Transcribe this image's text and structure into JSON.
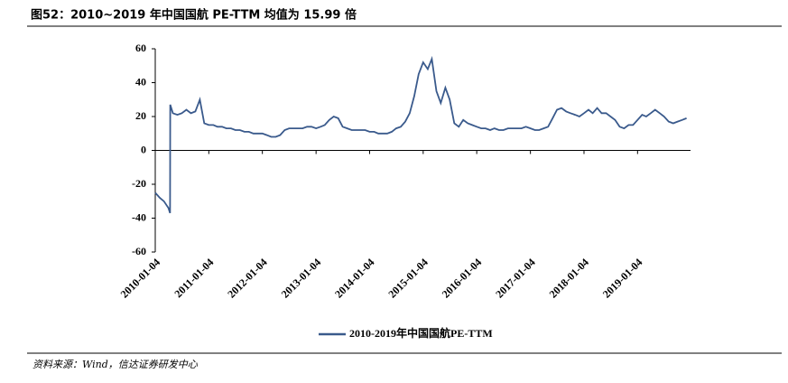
{
  "chart_data": {
    "type": "line",
    "title": "图52：2010~2019 年中国国航 PE-TTM 均值为 15.99 倍",
    "source": "资料来源：Wind，信达证券研发中心",
    "xlim": [
      "2010-01-04",
      "2019-12-31"
    ],
    "xticks": [
      "2010-01-04",
      "2011-01-04",
      "2012-01-04",
      "2013-01-04",
      "2014-01-04",
      "2015-01-04",
      "2016-01-04",
      "2017-01-04",
      "2018-01-04",
      "2019-01-04"
    ],
    "ylim": [
      -60,
      60
    ],
    "yticks": [
      -60,
      -40,
      -20,
      0,
      20,
      40,
      60
    ],
    "series": [
      {
        "name": "2010-2019年中国国航PE-TTM",
        "color": "#3a5a8c",
        "x": [
          "2010-01-04",
          "2010-02-04",
          "2010-03-04",
          "2010-04-04",
          "2010-04-15",
          "2010-04-16",
          "2010-05-04",
          "2010-06-04",
          "2010-07-04",
          "2010-08-04",
          "2010-09-04",
          "2010-10-04",
          "2010-11-04",
          "2010-12-04",
          "2011-01-04",
          "2011-02-04",
          "2011-03-04",
          "2011-04-04",
          "2011-05-04",
          "2011-06-04",
          "2011-07-04",
          "2011-08-04",
          "2011-09-04",
          "2011-10-04",
          "2011-11-04",
          "2011-12-04",
          "2012-01-04",
          "2012-02-04",
          "2012-03-04",
          "2012-04-04",
          "2012-05-04",
          "2012-06-04",
          "2012-07-04",
          "2012-08-04",
          "2012-09-04",
          "2012-10-04",
          "2012-11-04",
          "2012-12-04",
          "2013-01-04",
          "2013-02-04",
          "2013-03-04",
          "2013-04-04",
          "2013-05-04",
          "2013-06-04",
          "2013-07-04",
          "2013-08-04",
          "2013-09-04",
          "2013-10-04",
          "2013-11-04",
          "2013-12-04",
          "2014-01-04",
          "2014-02-04",
          "2014-03-04",
          "2014-04-04",
          "2014-05-04",
          "2014-06-04",
          "2014-07-04",
          "2014-08-04",
          "2014-09-04",
          "2014-10-04",
          "2014-11-04",
          "2014-12-04",
          "2015-01-04",
          "2015-02-04",
          "2015-03-04",
          "2015-04-04",
          "2015-05-04",
          "2015-06-04",
          "2015-07-04",
          "2015-08-04",
          "2015-09-04",
          "2015-10-04",
          "2015-11-04",
          "2015-12-04",
          "2016-01-04",
          "2016-02-04",
          "2016-03-04",
          "2016-04-04",
          "2016-05-04",
          "2016-06-04",
          "2016-07-04",
          "2016-08-04",
          "2016-09-04",
          "2016-10-04",
          "2016-11-04",
          "2016-12-04",
          "2017-01-04",
          "2017-02-04",
          "2017-03-04",
          "2017-04-04",
          "2017-05-04",
          "2017-06-04",
          "2017-07-04",
          "2017-08-04",
          "2017-09-04",
          "2017-10-04",
          "2017-11-04",
          "2017-12-04",
          "2018-01-04",
          "2018-02-04",
          "2018-03-04",
          "2018-04-04",
          "2018-05-04",
          "2018-06-04",
          "2018-07-04",
          "2018-08-04",
          "2018-09-04",
          "2018-10-04",
          "2018-11-04",
          "2018-12-04",
          "2019-01-04",
          "2019-02-04",
          "2019-03-04",
          "2019-04-04",
          "2019-05-04",
          "2019-06-04",
          "2019-07-04",
          "2019-08-04",
          "2019-09-04",
          "2019-10-04",
          "2019-11-04",
          "2019-12-04"
        ],
        "values": [
          -25,
          -28,
          -30,
          -34,
          -37,
          27,
          22,
          21,
          22,
          24,
          22,
          23,
          30,
          16,
          15,
          15,
          14,
          14,
          13,
          13,
          12,
          12,
          11,
          11,
          10,
          10,
          10,
          9,
          8,
          8,
          9,
          12,
          13,
          13,
          13,
          13,
          14,
          14,
          13,
          14,
          15,
          18,
          20,
          19,
          14,
          13,
          12,
          12,
          12,
          12,
          11,
          11,
          10,
          10,
          10,
          11,
          13,
          14,
          17,
          22,
          32,
          45,
          52,
          48,
          54,
          35,
          28,
          37,
          30,
          16,
          14,
          18,
          16,
          15,
          14,
          13,
          13,
          12,
          13,
          12,
          12,
          13,
          13,
          13,
          13,
          14,
          13,
          12,
          12,
          13,
          14,
          19,
          24,
          25,
          23,
          22,
          21,
          20,
          22,
          24,
          22,
          25,
          22,
          22,
          20,
          18,
          14,
          13,
          15,
          15,
          18,
          21,
          20,
          22,
          24,
          22,
          20,
          17,
          16,
          17,
          18,
          19
        ]
      }
    ]
  }
}
